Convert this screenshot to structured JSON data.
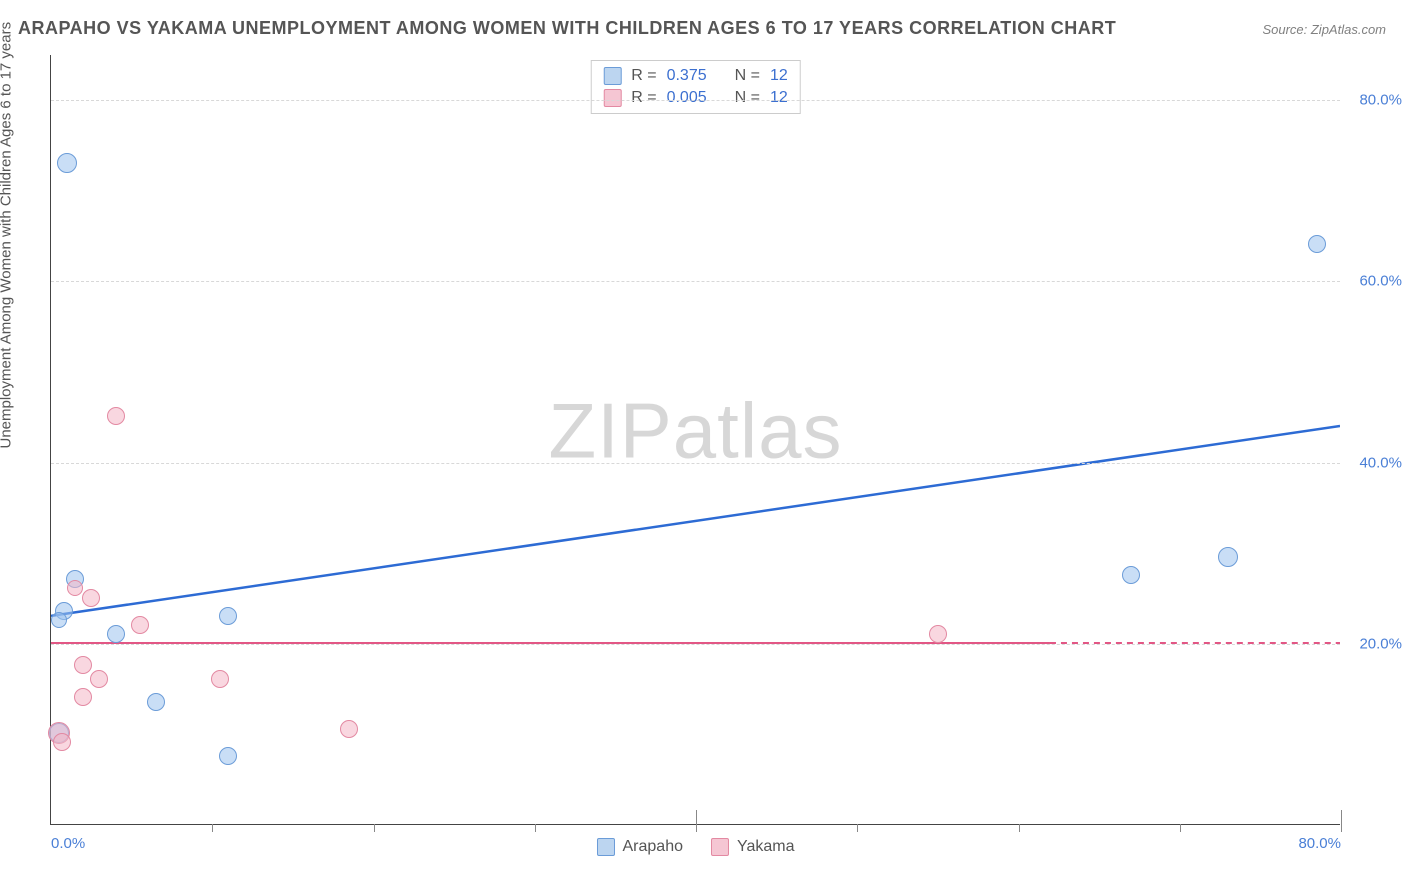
{
  "title": "ARAPAHO VS YAKAMA UNEMPLOYMENT AMONG WOMEN WITH CHILDREN AGES 6 TO 17 YEARS CORRELATION CHART",
  "source": "Source: ZipAtlas.com",
  "ylabel": "Unemployment Among Women with Children Ages 6 to 17 years",
  "watermark_a": "ZIP",
  "watermark_b": "atlas",
  "chart": {
    "type": "scatter",
    "xlim": [
      0,
      80
    ],
    "ylim": [
      0,
      85
    ],
    "y_ticks": [
      20,
      40,
      60,
      80
    ],
    "y_tick_labels": [
      "20.0%",
      "40.0%",
      "60.0%",
      "80.0%"
    ],
    "x_ticks_minor": [
      10,
      20,
      30,
      40,
      50,
      60,
      70,
      80
    ],
    "x_ticks_major": [
      0,
      40,
      80
    ],
    "x_tick_labels": {
      "0": "0.0%",
      "80": "80.0%"
    },
    "grid_color": "#d8d8d8",
    "background_color": "#ffffff",
    "axis_color": "#444444",
    "text_color": "#555555",
    "tick_label_color": "#4a7fd6",
    "title_fontsize": 18,
    "label_fontsize": 15,
    "watermark_fontsize": 78,
    "point_radius_default": 9,
    "series": [
      {
        "name": "Arapaho",
        "color_fill": "#bcd5f0",
        "color_stroke": "#6b9cd8",
        "fill_opacity": 0.55,
        "R": "0.375",
        "N": "12",
        "trend": {
          "x1": 0,
          "y1": 23,
          "x2": 80,
          "y2": 44,
          "stroke": "#2d6bd4",
          "width": 2.5,
          "dash": "none"
        },
        "points": [
          {
            "x": 1.0,
            "y": 73.0,
            "r": 10
          },
          {
            "x": 78.5,
            "y": 64.0,
            "r": 9
          },
          {
            "x": 67.0,
            "y": 27.5,
            "r": 9
          },
          {
            "x": 73.0,
            "y": 29.5,
            "r": 10
          },
          {
            "x": 11.0,
            "y": 23.0,
            "r": 9
          },
          {
            "x": 0.8,
            "y": 23.5,
            "r": 9
          },
          {
            "x": 1.5,
            "y": 27.0,
            "r": 9
          },
          {
            "x": 4.0,
            "y": 21.0,
            "r": 9
          },
          {
            "x": 6.5,
            "y": 13.5,
            "r": 9
          },
          {
            "x": 11.0,
            "y": 7.5,
            "r": 9
          },
          {
            "x": 0.5,
            "y": 10.0,
            "r": 10
          },
          {
            "x": 0.5,
            "y": 22.5,
            "r": 8
          }
        ]
      },
      {
        "name": "Yakama",
        "color_fill": "#f5c6d3",
        "color_stroke": "#e389a2",
        "fill_opacity": 0.55,
        "R": "0.005",
        "N": "12",
        "trend_solid": {
          "x1": 0,
          "y1": 20,
          "x2": 62,
          "y2": 20,
          "stroke": "#e25785",
          "width": 2,
          "dash": "none"
        },
        "trend_dash": {
          "x1": 62,
          "y1": 20,
          "x2": 80,
          "y2": 20,
          "stroke": "#e25785",
          "width": 2,
          "dash": "6 5"
        },
        "points": [
          {
            "x": 4.0,
            "y": 45.0,
            "r": 9
          },
          {
            "x": 55.0,
            "y": 21.0,
            "r": 9
          },
          {
            "x": 5.5,
            "y": 22.0,
            "r": 9
          },
          {
            "x": 2.5,
            "y": 25.0,
            "r": 9
          },
          {
            "x": 1.5,
            "y": 26.0,
            "r": 8
          },
          {
            "x": 2.0,
            "y": 17.5,
            "r": 9
          },
          {
            "x": 3.0,
            "y": 16.0,
            "r": 9
          },
          {
            "x": 10.5,
            "y": 16.0,
            "r": 9
          },
          {
            "x": 2.0,
            "y": 14.0,
            "r": 9
          },
          {
            "x": 18.5,
            "y": 10.5,
            "r": 9
          },
          {
            "x": 0.5,
            "y": 10.0,
            "r": 11
          },
          {
            "x": 0.7,
            "y": 9.0,
            "r": 9
          }
        ]
      }
    ],
    "legend_top": {
      "R_label": "R =",
      "N_label": "N ="
    },
    "legend_bottom": [
      {
        "swatch": "blue",
        "label": "Arapaho"
      },
      {
        "swatch": "pink",
        "label": "Yakama"
      }
    ]
  }
}
